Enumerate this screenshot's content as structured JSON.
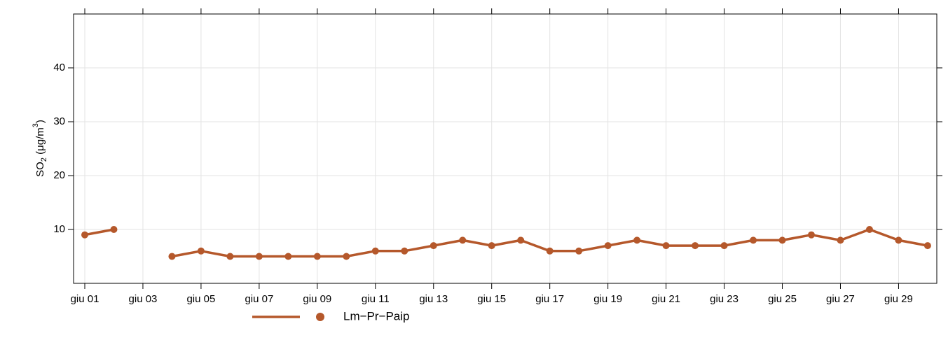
{
  "chart_data": {
    "type": "line",
    "ylabel": [
      "SO",
      "2",
      " (μg/m",
      "3",
      ")"
    ],
    "categories": [
      "giu 01",
      null,
      "giu 03",
      null,
      "giu 05",
      null,
      "giu 07",
      null,
      "giu 09",
      null,
      "giu 11",
      null,
      "giu 13",
      null,
      "giu 15",
      null,
      "giu 17",
      null,
      "giu 19",
      null,
      "giu 21",
      null,
      "giu 23",
      null,
      "giu 25",
      null,
      "giu 27",
      null,
      "giu 29",
      null
    ],
    "series": [
      {
        "name": "Lm−Pr−Paip",
        "color": "#b5582b",
        "values": [
          9,
          10,
          null,
          5,
          6,
          5,
          5,
          5,
          5,
          5,
          6,
          6,
          7,
          8,
          7,
          8,
          6,
          6,
          7,
          8,
          7,
          7,
          7,
          8,
          8,
          9,
          8,
          10,
          8,
          7
        ]
      }
    ],
    "ylim": [
      0,
      50
    ],
    "yticks": [
      10,
      20,
      30,
      40
    ],
    "grid": true
  }
}
